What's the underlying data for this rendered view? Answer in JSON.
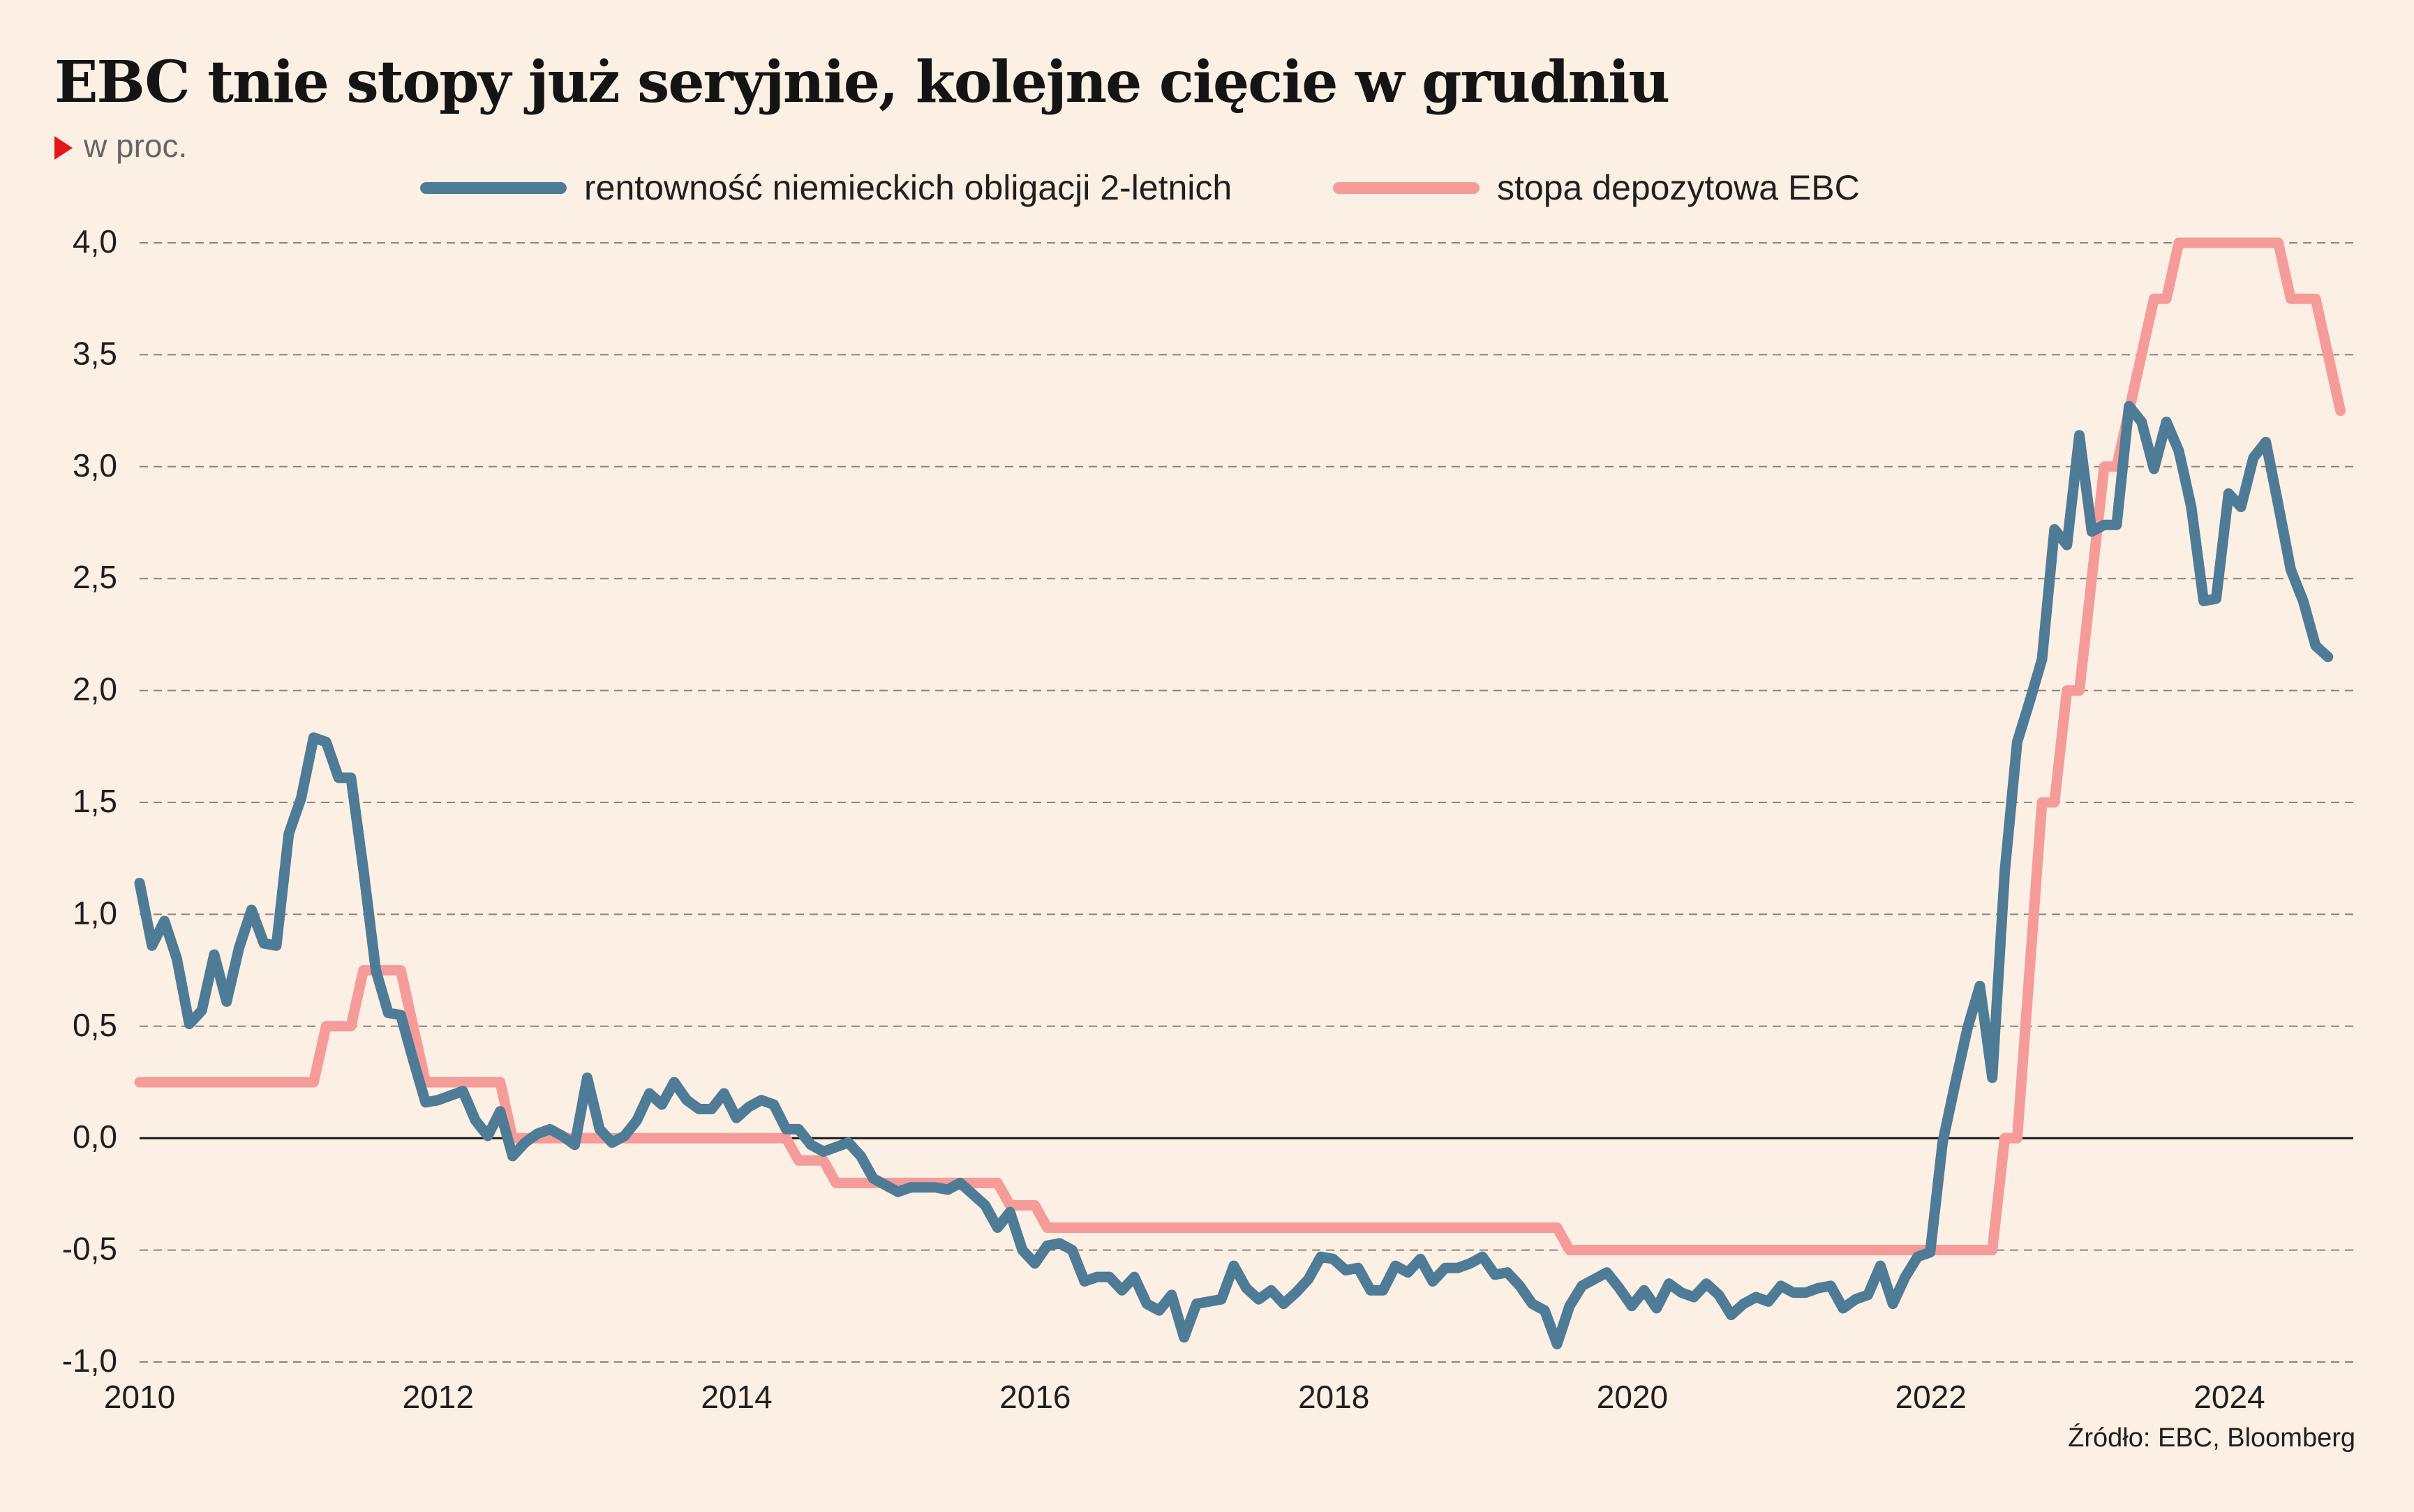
{
  "header": {
    "title": "EBC tnie stopy już seryjnie, kolejne cięcie w grudniu",
    "subtitle": "w proc."
  },
  "source": "Źródło: EBC, Bloomberg",
  "colors": {
    "background": "#fcefe3",
    "bund_yield": "#4e7b96",
    "deposit_rate": "#f59c9a",
    "accent_triangle": "#e3171b"
  },
  "chart_data": {
    "type": "line",
    "title": "EBC tnie stopy już seryjnie, kolejne cięcie w grudniu",
    "ylabel": "w proc.",
    "xlabel": "",
    "ylim": [
      -1.0,
      4.0
    ],
    "xlim": [
      2010.0,
      2024.83
    ],
    "y_ticks": [
      "-1,0",
      "-0,5",
      "0,0",
      "0,5",
      "1,0",
      "1,5",
      "2,0",
      "2,5",
      "3,0",
      "3,5",
      "4,0"
    ],
    "x_ticks": [
      "2010",
      "2012",
      "2014",
      "2016",
      "2018",
      "2020",
      "2022",
      "2024"
    ],
    "grid": "horizontal dashed",
    "legend_position": "top",
    "series": [
      {
        "name": "rentowność niemieckich obligacji 2-letnich",
        "color": "#4e7b96",
        "x_start": 2010.0,
        "x_step": 0.0833,
        "values": [
          1.14,
          0.86,
          0.97,
          0.8,
          0.51,
          0.57,
          0.82,
          0.61,
          0.85,
          1.02,
          0.87,
          0.86,
          1.36,
          1.52,
          1.79,
          1.77,
          1.61,
          1.61,
          1.2,
          0.75,
          0.56,
          0.55,
          0.35,
          0.16,
          0.17,
          0.19,
          0.21,
          0.08,
          0.01,
          0.12,
          -0.08,
          -0.02,
          0.02,
          0.04,
          0.01,
          -0.03,
          0.27,
          0.04,
          -0.02,
          0.01,
          0.08,
          0.2,
          0.15,
          0.25,
          0.17,
          0.13,
          0.13,
          0.2,
          0.09,
          0.14,
          0.17,
          0.15,
          0.04,
          0.04,
          -0.03,
          -0.06,
          -0.04,
          -0.02,
          -0.08,
          -0.18,
          -0.21,
          -0.24,
          -0.22,
          -0.22,
          -0.22,
          -0.23,
          -0.2,
          -0.25,
          -0.3,
          -0.4,
          -0.33,
          -0.5,
          -0.56,
          -0.48,
          -0.47,
          -0.5,
          -0.64,
          -0.62,
          -0.62,
          -0.68,
          -0.62,
          -0.74,
          -0.77,
          -0.7,
          -0.89,
          -0.74,
          -0.73,
          -0.72,
          -0.57,
          -0.67,
          -0.72,
          -0.68,
          -0.74,
          -0.69,
          -0.63,
          -0.53,
          -0.54,
          -0.59,
          -0.58,
          -0.68,
          -0.68,
          -0.57,
          -0.6,
          -0.54,
          -0.64,
          -0.58,
          -0.58,
          -0.56,
          -0.53,
          -0.61,
          -0.6,
          -0.66,
          -0.74,
          -0.77,
          -0.92,
          -0.75,
          -0.66,
          -0.63,
          -0.6,
          -0.67,
          -0.75,
          -0.68,
          -0.76,
          -0.65,
          -0.69,
          -0.71,
          -0.65,
          -0.7,
          -0.79,
          -0.74,
          -0.71,
          -0.73,
          -0.66,
          -0.69,
          -0.69,
          -0.67,
          -0.66,
          -0.76,
          -0.72,
          -0.7,
          -0.57,
          -0.74,
          -0.62,
          -0.53,
          -0.51,
          -0.02,
          0.24,
          0.49,
          0.68,
          0.27,
          1.19,
          1.77,
          1.95,
          2.14,
          2.72,
          2.65,
          3.14,
          2.71,
          2.74,
          2.74,
          3.27,
          3.2,
          2.99,
          3.2,
          3.07,
          2.82,
          2.4,
          2.41,
          2.88,
          2.82,
          3.04,
          3.11,
          2.83,
          2.54,
          2.4,
          2.2,
          2.15
        ]
      },
      {
        "name": "stopa depozytowa EBC",
        "color": "#f59c9a",
        "x_start": 2010.0,
        "x_step": 0.0833,
        "values": [
          0.25,
          0.25,
          0.25,
          0.25,
          0.25,
          0.25,
          0.25,
          0.25,
          0.25,
          0.25,
          0.25,
          0.25,
          0.25,
          0.25,
          0.25,
          0.5,
          0.5,
          0.5,
          0.75,
          0.75,
          0.75,
          0.75,
          0.5,
          0.25,
          0.25,
          0.25,
          0.25,
          0.25,
          0.25,
          0.25,
          0.0,
          0.0,
          0.0,
          0.0,
          0.0,
          0.0,
          0.0,
          0.0,
          0.0,
          0.0,
          0.0,
          0.0,
          0.0,
          0.0,
          0.0,
          0.0,
          0.0,
          0.0,
          0.0,
          0.0,
          0.0,
          0.0,
          0.0,
          -0.1,
          -0.1,
          -0.1,
          -0.2,
          -0.2,
          -0.2,
          -0.2,
          -0.2,
          -0.2,
          -0.2,
          -0.2,
          -0.2,
          -0.2,
          -0.2,
          -0.2,
          -0.2,
          -0.2,
          -0.3,
          -0.3,
          -0.3,
          -0.4,
          -0.4,
          -0.4,
          -0.4,
          -0.4,
          -0.4,
          -0.4,
          -0.4,
          -0.4,
          -0.4,
          -0.4,
          -0.4,
          -0.4,
          -0.4,
          -0.4,
          -0.4,
          -0.4,
          -0.4,
          -0.4,
          -0.4,
          -0.4,
          -0.4,
          -0.4,
          -0.4,
          -0.4,
          -0.4,
          -0.4,
          -0.4,
          -0.4,
          -0.4,
          -0.4,
          -0.4,
          -0.4,
          -0.4,
          -0.4,
          -0.4,
          -0.4,
          -0.4,
          -0.4,
          -0.4,
          -0.4,
          -0.4,
          -0.5,
          -0.5,
          -0.5,
          -0.5,
          -0.5,
          -0.5,
          -0.5,
          -0.5,
          -0.5,
          -0.5,
          -0.5,
          -0.5,
          -0.5,
          -0.5,
          -0.5,
          -0.5,
          -0.5,
          -0.5,
          -0.5,
          -0.5,
          -0.5,
          -0.5,
          -0.5,
          -0.5,
          -0.5,
          -0.5,
          -0.5,
          -0.5,
          -0.5,
          -0.5,
          -0.5,
          -0.5,
          -0.5,
          -0.5,
          -0.5,
          0.0,
          0.0,
          0.75,
          1.5,
          1.5,
          2.0,
          2.0,
          2.5,
          3.0,
          3.0,
          3.25,
          3.5,
          3.75,
          3.75,
          4.0,
          4.0,
          4.0,
          4.0,
          4.0,
          4.0,
          4.0,
          4.0,
          4.0,
          3.75,
          3.75,
          3.75,
          3.5,
          3.25
        ]
      }
    ]
  }
}
